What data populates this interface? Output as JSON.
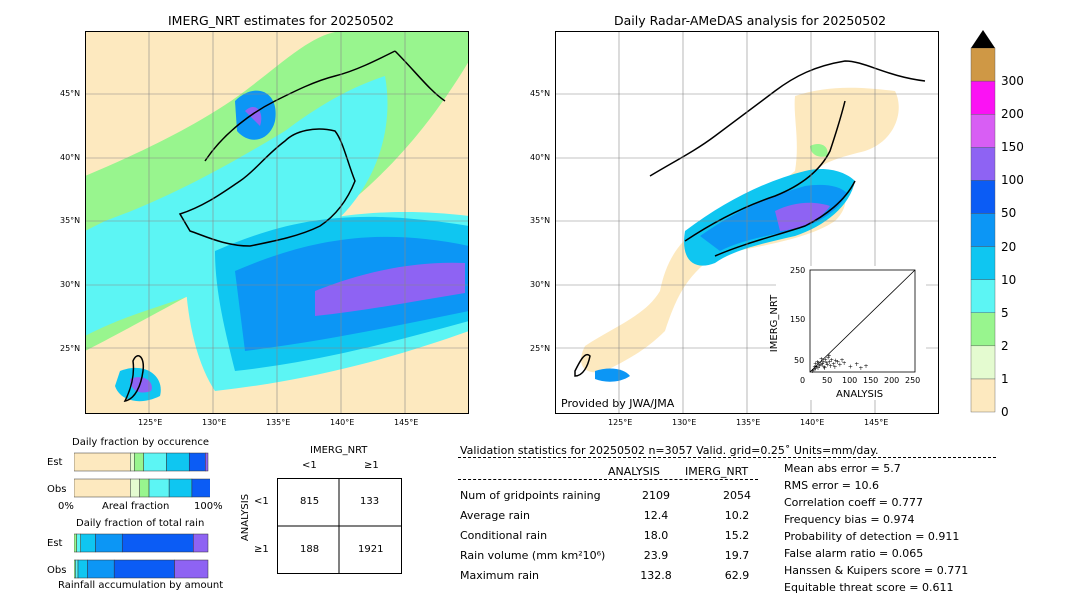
{
  "left_map": {
    "title": "IMERG_NRT estimates for 20250502",
    "lat_labels": [
      "45°N",
      "40°N",
      "35°N",
      "30°N",
      "25°N"
    ],
    "lon_labels": [
      "125°E",
      "130°E",
      "135°E",
      "140°E",
      "145°E"
    ]
  },
  "right_map": {
    "title": "Daily Radar-AMeDAS analysis for 20250502",
    "lat_labels": [
      "45°N",
      "40°N",
      "35°N",
      "30°N",
      "25°N"
    ],
    "lon_labels": [
      "125°E",
      "130°E",
      "135°E",
      "140°E",
      "145°E"
    ],
    "credit": "Provided by JWA/JMA"
  },
  "colorbar": {
    "ticks": [
      "0",
      "1",
      "2",
      "5",
      "10",
      "20",
      "50",
      "100",
      "150",
      "200",
      "300"
    ],
    "colors": [
      "#fde9bf",
      "#e4fbd0",
      "#98f58e",
      "#5cf5f4",
      "#0fc6f1",
      "#0c96f5",
      "#0b5cf5",
      "#8e63f3",
      "#d85ef4",
      "#fb12f4",
      "#cf9845"
    ]
  },
  "scatter": {
    "ylabel": "IMERG_NRT",
    "xlabel": "ANALYSIS",
    "ticks": [
      "0",
      "50",
      "100",
      "150",
      "200",
      "250"
    ]
  },
  "occurrence": {
    "title": "Daily fraction by occurence",
    "row_labels": [
      "Est",
      "Obs"
    ],
    "axis_left": "0%",
    "axis_mid": "Areal fraction",
    "axis_right": "100%"
  },
  "total_rain": {
    "title": "Daily fraction of total rain",
    "row_labels": [
      "Est",
      "Obs"
    ],
    "axis_label": "Rainfall accumulation by amount"
  },
  "contingency": {
    "title": "IMERG_NRT",
    "col_labels": [
      "<1",
      "≥1"
    ],
    "row_title": "ANALYSIS",
    "row_labels": [
      "<1",
      "≥1"
    ],
    "cells": [
      [
        "815",
        "133"
      ],
      [
        "188",
        "1921"
      ]
    ]
  },
  "validation": {
    "header": "Validation statistics for 20250502  n=3057 Valid. grid=0.25˚ Units=mm/day.",
    "col_analysis": "ANALYSIS",
    "col_imerg": "IMERG_NRT",
    "rows": [
      {
        "label": "Num of gridpoints raining",
        "analysis": "2109",
        "imerg": "2054"
      },
      {
        "label": "Average rain",
        "analysis": "12.4",
        "imerg": "10.2"
      },
      {
        "label": "Conditional rain",
        "analysis": "18.0",
        "imerg": "15.2"
      },
      {
        "label": "Rain volume (mm km²10⁶)",
        "analysis": "23.9",
        "imerg": "19.7"
      },
      {
        "label": "Maximum rain",
        "analysis": "132.8",
        "imerg": "62.9"
      }
    ],
    "scores": [
      "Mean abs error =    5.7",
      "RMS error =   10.6",
      "Correlation coeff =  0.777",
      "Frequency bias =  0.974",
      "Probability of detection =  0.911",
      "False alarm ratio =  0.065",
      "Hanssen & Kuipers score =  0.771",
      "Equitable threat score =  0.611"
    ]
  },
  "chart_data": [
    {
      "type": "heatmap",
      "title": "IMERG_NRT estimates for 20250502",
      "x_range": [
        "120°E",
        "150°E"
      ],
      "y_range": [
        "20°N",
        "50°N"
      ],
      "units": "mm/day"
    },
    {
      "type": "heatmap",
      "title": "Daily Radar-AMeDAS analysis for 20250502",
      "x_range": [
        "120°E",
        "150°E"
      ],
      "y_range": [
        "20°N",
        "50°N"
      ],
      "units": "mm/day"
    },
    {
      "type": "scatter",
      "xlabel": "ANALYSIS",
      "ylabel": "IMERG_NRT",
      "xlim": [
        0,
        250
      ],
      "ylim": [
        0,
        250
      ]
    },
    {
      "type": "bar",
      "title": "Daily fraction by occurence",
      "categories": [
        "Est",
        "Obs"
      ],
      "series": [
        {
          "values": [
            0.42,
            0.42
          ]
        },
        {
          "values": [
            0.03,
            0.07
          ]
        },
        {
          "values": [
            0.07,
            0.07
          ]
        },
        {
          "values": [
            0.17,
            0.15
          ]
        },
        {
          "values": [
            0.17,
            0.17
          ]
        },
        {
          "values": [
            0.12,
            0.18
          ]
        },
        {
          "values": [
            0.02,
            0.03
          ]
        }
      ]
    },
    {
      "type": "bar",
      "title": "Daily fraction of total rain",
      "categories": [
        "Est",
        "Obs"
      ],
      "series": [
        {
          "values": [
            0.02,
            0.01
          ]
        },
        {
          "values": [
            0.03,
            0.02
          ]
        },
        {
          "values": [
            0.11,
            0.07
          ]
        },
        {
          "values": [
            0.2,
            0.2
          ]
        },
        {
          "values": [
            0.53,
            0.45
          ]
        },
        {
          "values": [
            0.11,
            0.25
          ]
        }
      ]
    },
    {
      "type": "table",
      "title": "IMERG_NRT",
      "columns": [
        "<1",
        "≥1"
      ],
      "rows": [
        [
          "815",
          "133"
        ],
        [
          "188",
          "1921"
        ]
      ]
    }
  ]
}
